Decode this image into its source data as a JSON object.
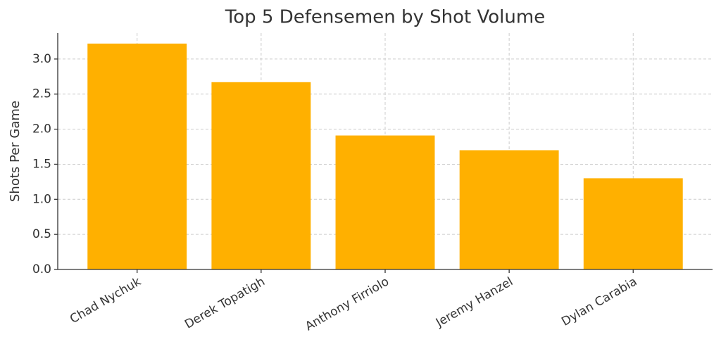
{
  "chart_data": {
    "type": "bar",
    "title": "Top 5 Defensemen by Shot Volume",
    "y_label": "Shots Per Game",
    "categories": [
      "Chad Nychuk",
      "Derek Topatigh",
      "Anthony Firriolo",
      "Jeremy Hanzel",
      "Dylan Carabia"
    ],
    "values": [
      3.22,
      2.67,
      1.91,
      1.7,
      1.3
    ],
    "color": "#ffb000",
    "ylim": [
      0,
      3.37
    ],
    "yticks": [
      {
        "value": 0,
        "label": "0.0"
      },
      {
        "value": 0.5,
        "label": "0.5"
      },
      {
        "value": 1,
        "label": "1.0"
      },
      {
        "value": 1.5,
        "label": "1.5"
      },
      {
        "value": 2,
        "label": "2.0"
      },
      {
        "value": 2.5,
        "label": "2.5"
      },
      {
        "value": 3,
        "label": "3.0"
      }
    ],
    "grid": true
  }
}
